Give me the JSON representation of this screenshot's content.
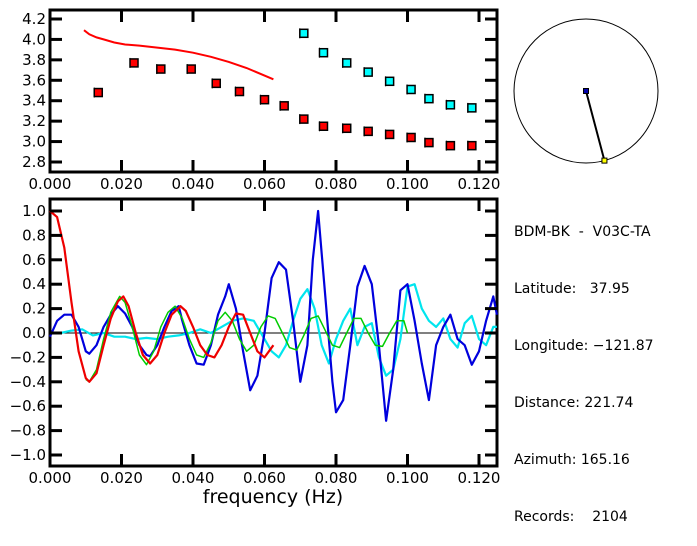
{
  "chart_data": [
    {
      "type": "scatter",
      "title": "",
      "xlabel": "",
      "ylabel": "",
      "xlim": [
        0.0,
        0.125
      ],
      "ylim": [
        2.7,
        4.25
      ],
      "xticks": [
        "0.000",
        "0.020",
        "0.040",
        "0.060",
        "0.080",
        "0.100",
        "0.120"
      ],
      "xtick_values": [
        0.0,
        0.02,
        0.04,
        0.06,
        0.08,
        0.1,
        0.12
      ],
      "yticks": [
        "4.2",
        "4.0",
        "3.8",
        "3.6",
        "3.4",
        "3.2",
        "3.0",
        "2.8"
      ],
      "ytick_values": [
        4.2,
        4.0,
        3.8,
        3.6,
        3.4,
        3.2,
        3.0,
        2.8
      ],
      "grid": false,
      "series": [
        {
          "name": "red-markers",
          "color": "#ff0000",
          "marker": "square",
          "x": [
            0.0135,
            0.0235,
            0.031,
            0.0395,
            0.0465,
            0.053,
            0.06,
            0.0655,
            0.071,
            0.0765,
            0.083,
            0.089,
            0.095,
            0.101,
            0.106,
            0.112,
            0.118
          ],
          "y": [
            3.48,
            3.77,
            3.71,
            3.71,
            3.57,
            3.49,
            3.41,
            3.35,
            3.22,
            3.15,
            3.13,
            3.1,
            3.07,
            3.04,
            2.99,
            2.96,
            2.96
          ]
        },
        {
          "name": "cyan-markers",
          "color": "#00ffff",
          "marker": "square",
          "x": [
            0.071,
            0.0765,
            0.083,
            0.089,
            0.095,
            0.101,
            0.106,
            0.112,
            0.118
          ],
          "y": [
            4.06,
            3.87,
            3.77,
            3.68,
            3.59,
            3.51,
            3.42,
            3.36,
            3.33
          ]
        },
        {
          "name": "red-curve",
          "color": "#ff0000",
          "line": true,
          "x": [
            0.0095,
            0.011,
            0.013,
            0.015,
            0.018,
            0.021,
            0.025,
            0.03,
            0.035,
            0.04,
            0.045,
            0.05,
            0.055,
            0.0625
          ],
          "y": [
            4.09,
            4.05,
            4.02,
            4.0,
            3.97,
            3.95,
            3.94,
            3.92,
            3.9,
            3.87,
            3.83,
            3.78,
            3.72,
            3.61
          ]
        }
      ]
    },
    {
      "type": "line",
      "title": "",
      "xlabel": "frequency (Hz)",
      "ylabel": "",
      "xlim": [
        0.0,
        0.125
      ],
      "ylim": [
        -1.1,
        1.1
      ],
      "xticks": [
        "0.000",
        "0.020",
        "0.040",
        "0.060",
        "0.080",
        "0.100",
        "0.120"
      ],
      "xtick_values": [
        0.0,
        0.02,
        0.04,
        0.06,
        0.08,
        0.1,
        0.12
      ],
      "yticks": [
        "1.0",
        "0.8",
        "0.6",
        "0.4",
        "0.2",
        "0.0",
        "−0.2",
        "−0.4",
        "−0.6",
        "−0.8",
        "−1.0"
      ],
      "ytick_values": [
        1.0,
        0.8,
        0.6,
        0.4,
        0.2,
        0.0,
        -0.2,
        -0.4,
        -0.6,
        -0.8,
        -1.0
      ],
      "zero_line": true,
      "grid": false,
      "series": [
        {
          "name": "blue",
          "color": "#0000dd",
          "x": [
            0.0,
            0.002,
            0.004,
            0.006,
            0.008,
            0.009,
            0.01,
            0.011,
            0.013,
            0.015,
            0.017,
            0.019,
            0.021,
            0.023,
            0.025,
            0.027,
            0.028,
            0.03,
            0.032,
            0.034,
            0.036,
            0.037,
            0.039,
            0.041,
            0.043,
            0.045,
            0.047,
            0.049,
            0.05,
            0.052,
            0.054,
            0.056,
            0.058,
            0.06,
            0.062,
            0.064,
            0.066,
            0.068,
            0.07,
            0.072,
            0.0735,
            0.075,
            0.077,
            0.079,
            0.08,
            0.082,
            0.084,
            0.086,
            0.088,
            0.09,
            0.092,
            0.094,
            0.096,
            0.098,
            0.1,
            0.102,
            0.104,
            0.106,
            0.108,
            0.11,
            0.112,
            0.114,
            0.116,
            0.118,
            0.12,
            0.122,
            0.124,
            0.125
          ],
          "y": [
            -0.03,
            0.1,
            0.15,
            0.15,
            0.05,
            -0.05,
            -0.15,
            -0.17,
            -0.1,
            0.05,
            0.15,
            0.22,
            0.16,
            0.05,
            -0.1,
            -0.18,
            -0.19,
            -0.1,
            0.05,
            0.18,
            0.22,
            0.1,
            -0.1,
            -0.25,
            -0.26,
            -0.1,
            0.15,
            0.3,
            0.4,
            0.2,
            -0.15,
            -0.47,
            -0.35,
            0.0,
            0.45,
            0.58,
            0.52,
            0.1,
            -0.4,
            -0.1,
            0.6,
            1.0,
            0.3,
            -0.4,
            -0.65,
            -0.55,
            -0.1,
            0.38,
            0.55,
            0.4,
            -0.1,
            -0.72,
            -0.3,
            0.35,
            0.4,
            0.1,
            -0.25,
            -0.55,
            -0.1,
            0.05,
            0.15,
            -0.05,
            -0.1,
            -0.26,
            -0.15,
            0.1,
            0.3,
            0.15
          ],
          "ylim_note": "approximate trace"
        },
        {
          "name": "cyan",
          "color": "#00e5ee",
          "x": [
            0.0,
            0.003,
            0.006,
            0.009,
            0.012,
            0.015,
            0.018,
            0.021,
            0.024,
            0.027,
            0.03,
            0.033,
            0.036,
            0.039,
            0.042,
            0.045,
            0.048,
            0.051,
            0.054,
            0.057,
            0.06,
            0.062,
            0.064,
            0.066,
            0.068,
            0.07,
            0.072,
            0.074,
            0.076,
            0.078,
            0.08,
            0.082,
            0.084,
            0.086,
            0.088,
            0.09,
            0.092,
            0.094,
            0.096,
            0.098,
            0.1,
            0.102,
            0.104,
            0.106,
            0.108,
            0.11,
            0.112,
            0.114,
            0.116,
            0.118,
            0.12,
            0.122,
            0.124,
            0.125
          ],
          "y": [
            0.0,
            0.0,
            0.02,
            0.03,
            -0.02,
            0.0,
            -0.03,
            -0.03,
            -0.05,
            -0.04,
            -0.05,
            -0.03,
            -0.02,
            0.0,
            0.03,
            0.0,
            0.05,
            0.1,
            0.12,
            0.1,
            -0.05,
            -0.15,
            -0.2,
            -0.1,
            0.1,
            0.28,
            0.36,
            0.2,
            -0.1,
            -0.25,
            -0.05,
            0.1,
            0.2,
            -0.1,
            0.05,
            0.08,
            -0.2,
            -0.35,
            -0.3,
            -0.05,
            0.38,
            0.4,
            0.2,
            0.1,
            0.05,
            0.12,
            -0.05,
            -0.12,
            0.08,
            0.14,
            -0.05,
            -0.1,
            0.05,
            0.05
          ]
        },
        {
          "name": "red",
          "color": "#ee0000",
          "x": [
            0.0,
            0.002,
            0.004,
            0.006,
            0.008,
            0.01,
            0.011,
            0.013,
            0.015,
            0.017,
            0.019,
            0.0205,
            0.022,
            0.024,
            0.026,
            0.028,
            0.03,
            0.032,
            0.034,
            0.0365,
            0.038,
            0.04,
            0.042,
            0.044,
            0.046,
            0.048,
            0.05,
            0.052,
            0.054,
            0.056,
            0.058,
            0.06,
            0.0625
          ],
          "y": [
            1.0,
            0.95,
            0.7,
            0.25,
            -0.15,
            -0.37,
            -0.4,
            -0.33,
            -0.1,
            0.12,
            0.26,
            0.3,
            0.22,
            0.0,
            -0.18,
            -0.25,
            -0.18,
            0.0,
            0.15,
            0.22,
            0.18,
            0.05,
            -0.1,
            -0.18,
            -0.2,
            -0.1,
            0.05,
            0.16,
            0.15,
            0.0,
            -0.15,
            -0.2,
            -0.1
          ]
        },
        {
          "name": "green",
          "color": "#00cc00",
          "x": [
            0.01,
            0.011,
            0.013,
            0.015,
            0.017,
            0.0195,
            0.021,
            0.023,
            0.025,
            0.027,
            0.029,
            0.031,
            0.033,
            0.035,
            0.037,
            0.039,
            0.041,
            0.043,
            0.045,
            0.047,
            0.049,
            0.051,
            0.053,
            0.055,
            0.057,
            0.059,
            0.061,
            0.063,
            0.065,
            0.067,
            0.069,
            0.071,
            0.073,
            0.075,
            0.077,
            0.079,
            0.081,
            0.083,
            0.085,
            0.087,
            0.089,
            0.091,
            0.093,
            0.095,
            0.097,
            0.099,
            0.1
          ],
          "y": [
            -0.38,
            -0.4,
            -0.3,
            -0.05,
            0.17,
            0.3,
            0.25,
            0.05,
            -0.18,
            -0.26,
            -0.15,
            0.05,
            0.17,
            0.22,
            0.12,
            -0.05,
            -0.18,
            -0.2,
            -0.08,
            0.1,
            0.17,
            0.1,
            -0.05,
            -0.15,
            -0.1,
            0.05,
            0.14,
            0.12,
            0.0,
            -0.12,
            -0.14,
            -0.02,
            0.12,
            0.14,
            0.02,
            -0.1,
            -0.12,
            0.0,
            0.12,
            0.12,
            0.0,
            -0.1,
            -0.11,
            0.0,
            0.1,
            0.1,
            0.0
          ]
        }
      ]
    }
  ],
  "compass": {
    "azimuth_deg": 165.16,
    "center_color": "#0000aa",
    "end_color": "#ffff00"
  },
  "station_info": {
    "title": "BDM-BK  -  V03C-TA",
    "rows": [
      {
        "label": "Latitude:",
        "value": "   37.95"
      },
      {
        "label": "Longitude:",
        "value": " −121.87"
      },
      {
        "label": "Distance:",
        "value": " 221.74"
      },
      {
        "label": "Azimuth:",
        "value": " 165.16"
      },
      {
        "label": "Records:",
        "value": "    2104"
      }
    ]
  }
}
